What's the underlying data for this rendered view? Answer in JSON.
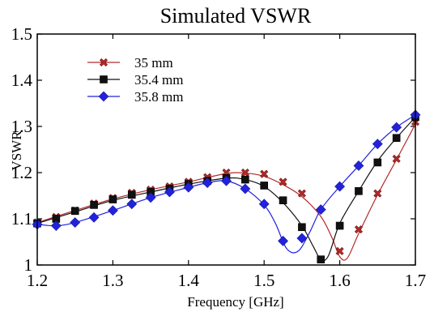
{
  "chart_data": {
    "type": "line",
    "title": "Simulated VSWR",
    "xlabel": "Frequency [GHz]",
    "ylabel": "VSWR",
    "xlim": [
      1.2,
      1.7
    ],
    "ylim": [
      1.0,
      1.5
    ],
    "xticks": [
      "1.2",
      "1.3",
      "1.4",
      "1.5",
      "1.6",
      "1.7"
    ],
    "yticks": [
      "1",
      "1.1",
      "1.2",
      "1.3",
      "1.4",
      "1.5"
    ],
    "grid": false,
    "legend_position": "top-left",
    "series": [
      {
        "name": "35 mm",
        "color": "#b52a2a",
        "marker": "x",
        "curve": [
          [
            1.2,
            1.092
          ],
          [
            1.25,
            1.118
          ],
          [
            1.3,
            1.143
          ],
          [
            1.35,
            1.163
          ],
          [
            1.4,
            1.18
          ],
          [
            1.45,
            1.198
          ],
          [
            1.475,
            1.199
          ],
          [
            1.5,
            1.192
          ],
          [
            1.525,
            1.174
          ],
          [
            1.55,
            1.148
          ],
          [
            1.575,
            1.105
          ],
          [
            1.59,
            1.058
          ],
          [
            1.6,
            1.018
          ],
          [
            1.61,
            1.015
          ],
          [
            1.625,
            1.068
          ],
          [
            1.65,
            1.152
          ],
          [
            1.675,
            1.228
          ],
          [
            1.7,
            1.305
          ]
        ],
        "x": [
          1.2,
          1.225,
          1.25,
          1.275,
          1.3,
          1.325,
          1.35,
          1.375,
          1.4,
          1.425,
          1.45,
          1.475,
          1.5,
          1.525,
          1.55,
          1.6,
          1.625,
          1.65,
          1.675,
          1.7
        ],
        "y": [
          1.092,
          1.104,
          1.118,
          1.133,
          1.145,
          1.156,
          1.163,
          1.17,
          1.18,
          1.19,
          1.2,
          1.2,
          1.197,
          1.18,
          1.155,
          1.03,
          1.077,
          1.155,
          1.23,
          1.31
        ]
      },
      {
        "name": "35.4 mm",
        "color": "#111111",
        "marker": "square",
        "curve": [
          [
            1.2,
            1.09
          ],
          [
            1.25,
            1.115
          ],
          [
            1.3,
            1.14
          ],
          [
            1.35,
            1.158
          ],
          [
            1.4,
            1.175
          ],
          [
            1.45,
            1.188
          ],
          [
            1.475,
            1.185
          ],
          [
            1.5,
            1.17
          ],
          [
            1.525,
            1.135
          ],
          [
            1.55,
            1.085
          ],
          [
            1.565,
            1.04
          ],
          [
            1.575,
            1.012
          ],
          [
            1.585,
            1.02
          ],
          [
            1.6,
            1.09
          ],
          [
            1.625,
            1.16
          ],
          [
            1.65,
            1.225
          ],
          [
            1.675,
            1.275
          ],
          [
            1.7,
            1.32
          ]
        ],
        "x": [
          1.2,
          1.225,
          1.25,
          1.275,
          1.3,
          1.325,
          1.35,
          1.375,
          1.4,
          1.425,
          1.45,
          1.475,
          1.5,
          1.525,
          1.55,
          1.575,
          1.6,
          1.625,
          1.65,
          1.675,
          1.7
        ],
        "y": [
          1.09,
          1.1,
          1.117,
          1.13,
          1.142,
          1.152,
          1.158,
          1.165,
          1.175,
          1.182,
          1.188,
          1.185,
          1.172,
          1.14,
          1.082,
          1.012,
          1.085,
          1.16,
          1.222,
          1.275,
          1.32
        ]
      },
      {
        "name": "35.8 mm",
        "color": "#2222dd",
        "marker": "diamond",
        "curve": [
          [
            1.2,
            1.088
          ],
          [
            1.225,
            1.085
          ],
          [
            1.25,
            1.092
          ],
          [
            1.3,
            1.118
          ],
          [
            1.35,
            1.146
          ],
          [
            1.4,
            1.168
          ],
          [
            1.425,
            1.178
          ],
          [
            1.45,
            1.182
          ],
          [
            1.475,
            1.165
          ],
          [
            1.5,
            1.13
          ],
          [
            1.515,
            1.09
          ],
          [
            1.53,
            1.035
          ],
          [
            1.545,
            1.03
          ],
          [
            1.56,
            1.07
          ],
          [
            1.575,
            1.12
          ],
          [
            1.6,
            1.17
          ],
          [
            1.625,
            1.215
          ],
          [
            1.65,
            1.262
          ],
          [
            1.675,
            1.298
          ],
          [
            1.7,
            1.325
          ]
        ],
        "x": [
          1.2,
          1.225,
          1.25,
          1.275,
          1.3,
          1.325,
          1.35,
          1.375,
          1.4,
          1.425,
          1.45,
          1.475,
          1.5,
          1.525,
          1.55,
          1.575,
          1.6,
          1.625,
          1.65,
          1.675,
          1.7
        ],
        "y": [
          1.088,
          1.085,
          1.092,
          1.103,
          1.118,
          1.132,
          1.146,
          1.158,
          1.168,
          1.178,
          1.182,
          1.165,
          1.132,
          1.052,
          1.058,
          1.12,
          1.17,
          1.215,
          1.262,
          1.298,
          1.325
        ]
      }
    ]
  }
}
